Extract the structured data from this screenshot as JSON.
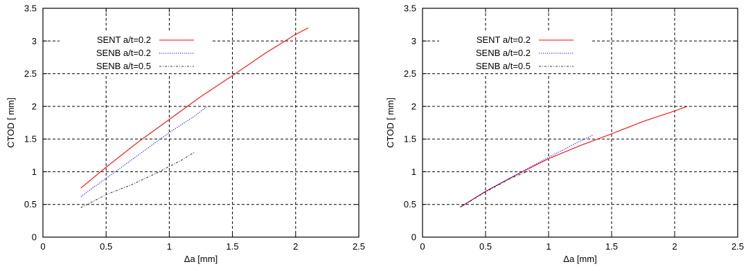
{
  "chart_data": [
    {
      "type": "line",
      "xlabel": "Δa [mm]",
      "ylabel": "CTOD [ mm]",
      "xlim": [
        0,
        2.5
      ],
      "ylim": [
        0,
        3.5
      ],
      "xticks": [
        "0",
        "0.5",
        "1",
        "1.5",
        "2",
        "2.5"
      ],
      "yticks": [
        "0",
        "0.5",
        "1",
        "1.5",
        "2",
        "2.5",
        "3",
        "3.5"
      ],
      "grid": true,
      "legend_position": "top-left",
      "series": [
        {
          "name": "SENT a/t=0.2",
          "color": "#ff0000",
          "dash": "solid",
          "x": [
            0.3,
            0.5,
            0.75,
            1.0,
            1.25,
            1.5,
            1.75,
            2.0,
            2.1
          ],
          "y": [
            0.75,
            1.07,
            1.45,
            1.8,
            2.15,
            2.47,
            2.8,
            3.1,
            3.2
          ]
        },
        {
          "name": "SENB a/t=0.2",
          "color": "#0000ff",
          "dash": "dotted",
          "x": [
            0.3,
            0.5,
            0.75,
            1.0,
            1.2,
            1.3
          ],
          "y": [
            0.62,
            0.9,
            1.25,
            1.6,
            1.85,
            2.0
          ]
        },
        {
          "name": "SENB a/t=0.5",
          "color": "#333333",
          "dash": "dashdot",
          "x": [
            0.3,
            0.5,
            0.7,
            0.9,
            1.1,
            1.2
          ],
          "y": [
            0.45,
            0.65,
            0.8,
            0.98,
            1.18,
            1.3
          ]
        }
      ]
    },
    {
      "type": "line",
      "xlabel": "Δa [mm]",
      "ylabel": "CTOD [ mm]",
      "xlim": [
        0,
        2.5
      ],
      "ylim": [
        0,
        3.5
      ],
      "xticks": [
        "0",
        "0.5",
        "1",
        "1.5",
        "2",
        "2.5"
      ],
      "yticks": [
        "0",
        "0.5",
        "1",
        "1.5",
        "2",
        "2.5",
        "3",
        "3.5"
      ],
      "grid": true,
      "legend_position": "top-left",
      "series": [
        {
          "name": "SENT a/t=0.2",
          "color": "#ff0000",
          "dash": "solid",
          "x": [
            0.3,
            0.5,
            0.75,
            1.0,
            1.25,
            1.5,
            1.75,
            2.0,
            2.1
          ],
          "y": [
            0.46,
            0.7,
            0.96,
            1.2,
            1.4,
            1.58,
            1.77,
            1.93,
            2.0
          ]
        },
        {
          "name": "SENB a/t=0.2",
          "color": "#0000ff",
          "dash": "dotted",
          "x": [
            0.3,
            0.5,
            0.75,
            1.0,
            1.2,
            1.35
          ],
          "y": [
            0.46,
            0.7,
            0.96,
            1.22,
            1.42,
            1.56
          ]
        },
        {
          "name": "SENB a/t=0.5",
          "color": "#333333",
          "dash": "dashdot",
          "x": [
            0.3,
            0.5,
            0.7,
            0.85
          ],
          "y": [
            0.46,
            0.69,
            0.9,
            1.02
          ]
        }
      ]
    }
  ]
}
